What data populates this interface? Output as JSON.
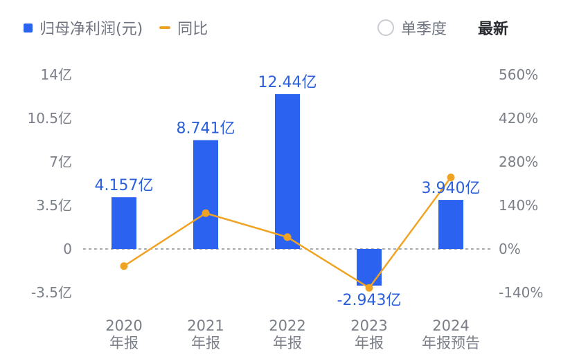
{
  "legend": {
    "bars_label": "归母净利润(元)",
    "line_label": "同比"
  },
  "controls": {
    "single_quarter_label": "单季度",
    "latest_label": "最新"
  },
  "colors": {
    "bar": "#2b63f0",
    "line": "#f0a323",
    "axis_text": "#7a7f88",
    "data_label": "#2b5fd9"
  },
  "chart_data": {
    "type": "bar",
    "categories": [
      [
        "2020",
        "年报"
      ],
      [
        "2021",
        "年报"
      ],
      [
        "2022",
        "年报"
      ],
      [
        "2023",
        "年报"
      ],
      [
        "2024",
        "年报预告"
      ]
    ],
    "series": [
      {
        "name": "归母净利润(元)",
        "type": "bar",
        "axis": "left",
        "values": [
          4.157,
          8.741,
          12.44,
          -2.943,
          3.94
        ],
        "labels": [
          "4.157亿",
          "8.741亿",
          "12.44亿",
          "-2.943亿",
          "3.940亿"
        ]
      },
      {
        "name": "同比",
        "type": "line",
        "axis": "right",
        "values": [
          -55,
          115,
          38,
          -125,
          230
        ]
      }
    ],
    "left_axis": {
      "ticks": [
        14,
        10.5,
        7,
        3.5,
        0,
        -3.5
      ],
      "tick_labels": [
        "14亿",
        "10.5亿",
        "7亿",
        "3.5亿",
        "0",
        "-3.5亿"
      ],
      "range": [
        -3.5,
        14
      ]
    },
    "right_axis": {
      "ticks": [
        560,
        420,
        280,
        140,
        0,
        -140
      ],
      "tick_labels": [
        "560%",
        "420%",
        "280%",
        "140%",
        "0%",
        "-140%"
      ],
      "range": [
        -140,
        560
      ]
    },
    "zero_line": "dashed",
    "grid": false
  }
}
